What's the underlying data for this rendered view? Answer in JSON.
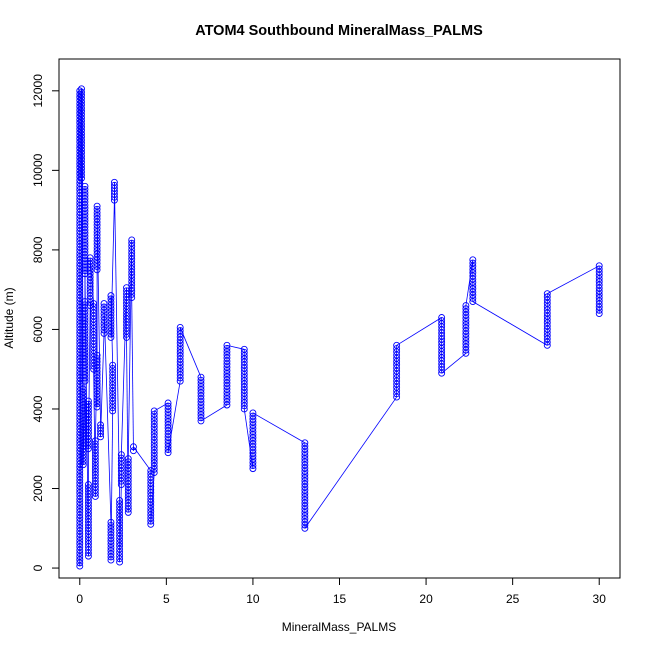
{
  "chart_data": {
    "type": "scatter",
    "title": "ATOM4 Southbound MineralMass_PALMS",
    "xlabel": "MineralMass_PALMS",
    "ylabel": "Altitude (m)",
    "xlim": [
      -1.2,
      31.2
    ],
    "ylim": [
      -250,
      12800
    ],
    "xticks": [
      "0",
      "5",
      "10",
      "15",
      "20",
      "25",
      "30"
    ],
    "yticks": [
      "0",
      "2000",
      "4000",
      "6000",
      "8000",
      "10000",
      "12000"
    ],
    "grid": false,
    "legend": "none",
    "marker": "open-circle",
    "connect_points": true,
    "color": "#0000ff",
    "profiles": [
      {
        "x": 30.0,
        "alt_min": 6400,
        "alt_max": 7600
      },
      {
        "x": 27.0,
        "alt_min": 5600,
        "alt_max": 6900
      },
      {
        "x": 22.7,
        "alt_min": 6700,
        "alt_max": 7750
      },
      {
        "x": 22.3,
        "alt_min": 5400,
        "alt_max": 6600
      },
      {
        "x": 20.9,
        "alt_min": 4900,
        "alt_max": 6300
      },
      {
        "x": 18.3,
        "alt_min": 4300,
        "alt_max": 5600
      },
      {
        "x": 13.0,
        "alt_min": 1000,
        "alt_max": 3150
      },
      {
        "x": 10.0,
        "alt_min": 2500,
        "alt_max": 3900
      },
      {
        "x": 9.5,
        "alt_min": 4000,
        "alt_max": 5500
      },
      {
        "x": 8.5,
        "alt_min": 4100,
        "alt_max": 5600
      },
      {
        "x": 7.0,
        "alt_min": 3700,
        "alt_max": 4800
      },
      {
        "x": 5.8,
        "alt_min": 4700,
        "alt_max": 6050
      },
      {
        "x": 5.1,
        "alt_min": 2900,
        "alt_max": 4150
      },
      {
        "x": 4.3,
        "alt_min": 2400,
        "alt_max": 3950
      },
      {
        "x": 4.1,
        "alt_min": 1100,
        "alt_max": 2450
      },
      {
        "x": 3.1,
        "alt_min": 2950,
        "alt_max": 3050
      },
      {
        "x": 3.0,
        "alt_min": 6800,
        "alt_max": 8250
      },
      {
        "x": 2.8,
        "alt_min": 1400,
        "alt_max": 2750
      },
      {
        "x": 2.7,
        "alt_min": 5800,
        "alt_max": 7050
      },
      {
        "x": 2.4,
        "alt_min": 2100,
        "alt_max": 2850
      },
      {
        "x": 2.3,
        "alt_min": 150,
        "alt_max": 1700
      },
      {
        "x": 2.0,
        "alt_min": 9250,
        "alt_max": 9700
      },
      {
        "x": 1.8,
        "alt_min": 5800,
        "alt_max": 6850
      },
      {
        "x": 1.9,
        "alt_min": 3950,
        "alt_max": 5100
      },
      {
        "x": 1.8,
        "alt_min": 200,
        "alt_max": 1150
      },
      {
        "x": 1.4,
        "alt_min": 5900,
        "alt_max": 6650
      },
      {
        "x": 1.2,
        "alt_min": 3300,
        "alt_max": 3600
      },
      {
        "x": 1.0,
        "alt_min": 7500,
        "alt_max": 9100
      },
      {
        "x": 1.0,
        "alt_min": 4050,
        "alt_max": 5350
      },
      {
        "x": 0.9,
        "alt_min": 1800,
        "alt_max": 3200
      },
      {
        "x": 0.8,
        "alt_min": 5000,
        "alt_max": 6650
      },
      {
        "x": 0.6,
        "alt_min": 6600,
        "alt_max": 7800
      },
      {
        "x": 0.5,
        "alt_min": 3000,
        "alt_max": 4200
      },
      {
        "x": 0.5,
        "alt_min": 300,
        "alt_max": 2100
      },
      {
        "x": 0.3,
        "alt_min": 7400,
        "alt_max": 9600
      },
      {
        "x": 0.3,
        "alt_min": 4700,
        "alt_max": 6700
      },
      {
        "x": 0.2,
        "alt_min": 2600,
        "alt_max": 4500
      },
      {
        "x": 0.1,
        "alt_min": 9800,
        "alt_max": 12050
      },
      {
        "x": 0.0,
        "alt_min": 50,
        "alt_max": 12000
      }
    ]
  }
}
